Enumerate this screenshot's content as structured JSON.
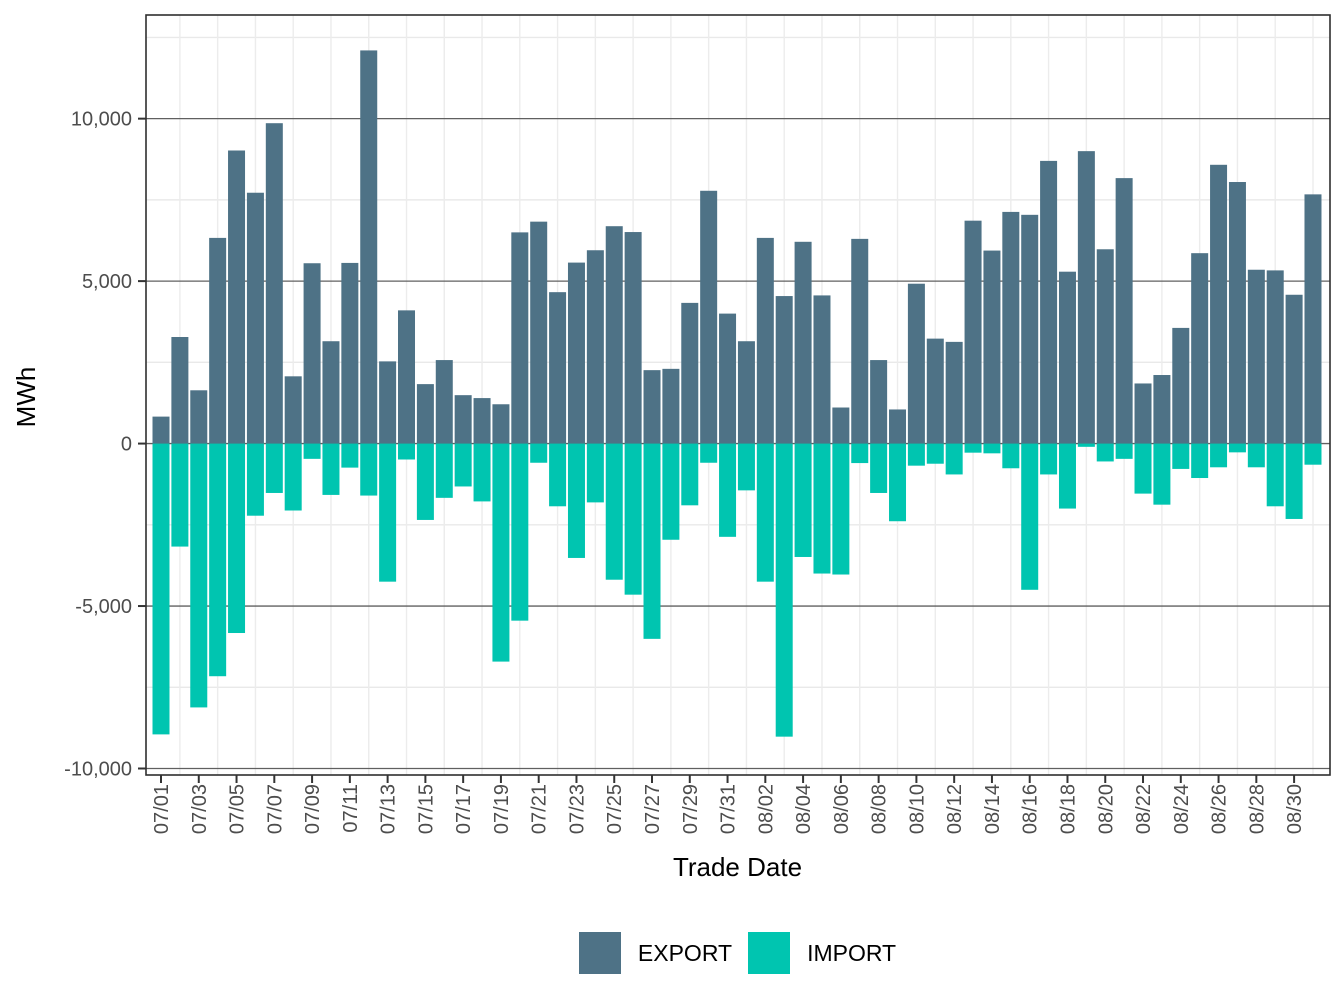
{
  "chart_data": {
    "type": "bar",
    "title": "",
    "xlabel": "Trade Date",
    "ylabel": "MWh",
    "orientation": "diverging-vertical",
    "grid": true,
    "legend_position": "bottom",
    "ylim": [
      -10200,
      13190
    ],
    "yticks_major": [
      -10000,
      -5000,
      0,
      5000,
      10000
    ],
    "yticks_minor": [
      -7500,
      -2500,
      2500,
      7500,
      12500
    ],
    "x_label_every": 2,
    "categories": [
      "07/01",
      "07/02",
      "07/03",
      "07/04",
      "07/05",
      "07/06",
      "07/07",
      "07/08",
      "07/09",
      "07/10",
      "07/11",
      "07/12",
      "07/13",
      "07/14",
      "07/15",
      "07/16",
      "07/17",
      "07/18",
      "07/19",
      "07/20",
      "07/21",
      "07/22",
      "07/23",
      "07/24",
      "07/25",
      "07/26",
      "07/27",
      "07/28",
      "07/29",
      "07/30",
      "07/31",
      "08/01",
      "08/02",
      "08/03",
      "08/04",
      "08/05",
      "08/06",
      "08/07",
      "08/08",
      "08/09",
      "08/10",
      "08/11",
      "08/12",
      "08/13",
      "08/14",
      "08/15",
      "08/16",
      "08/17",
      "08/18",
      "08/19",
      "08/20",
      "08/21",
      "08/22",
      "08/23",
      "08/24",
      "08/25",
      "08/26",
      "08/27",
      "08/28",
      "08/29",
      "08/30",
      "08/31"
    ],
    "series": [
      {
        "name": "EXPORT",
        "color": "#4e7286",
        "values": [
          830,
          3280,
          1640,
          6330,
          9020,
          7720,
          9860,
          2070,
          5550,
          3150,
          5560,
          12100,
          2530,
          4100,
          1830,
          2570,
          1490,
          1400,
          1210,
          6500,
          6830,
          4660,
          5570,
          5950,
          6690,
          6510,
          2260,
          2300,
          4330,
          7780,
          4000,
          3150,
          6330,
          4540,
          6210,
          4560,
          1110,
          6300,
          2570,
          1050,
          4920,
          3230,
          3130,
          6860,
          5940,
          7130,
          7040,
          8700,
          5290,
          9000,
          5980,
          8170,
          1850,
          2110,
          3560,
          5860,
          8580,
          8050,
          5350,
          5330,
          4580,
          7670
        ]
      },
      {
        "name": "IMPORT",
        "color": "#00c5b0",
        "values": [
          -8950,
          -3170,
          -8120,
          -7160,
          -5830,
          -2220,
          -1520,
          -2060,
          -470,
          -1580,
          -740,
          -1600,
          -4250,
          -490,
          -2350,
          -1670,
          -1320,
          -1780,
          -6710,
          -5450,
          -590,
          -1930,
          -3520,
          -1810,
          -4190,
          -4650,
          -6010,
          -2960,
          -1900,
          -590,
          -2870,
          -1440,
          -4250,
          -9020,
          -3490,
          -4000,
          -4030,
          -600,
          -1520,
          -2390,
          -680,
          -620,
          -950,
          -280,
          -300,
          -760,
          -4500,
          -950,
          -2000,
          -100,
          -550,
          -470,
          -1540,
          -1880,
          -780,
          -1060,
          -730,
          -270,
          -730,
          -1930,
          -2320,
          -650
        ]
      }
    ]
  }
}
